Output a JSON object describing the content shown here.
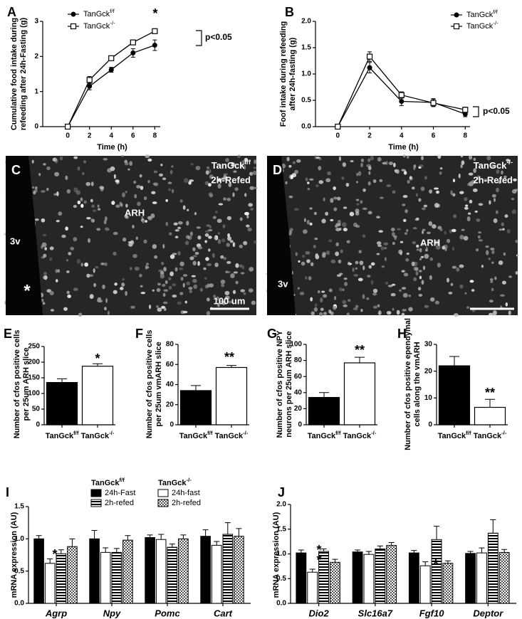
{
  "chart_data": [
    {
      "type": "line",
      "label": "A",
      "ylabel": [
        "Cumulative food intake during",
        "refeeding after 24h-Fasting (g)"
      ],
      "xlabel": "Time (h)",
      "x": [
        0,
        2,
        4,
        6,
        8
      ],
      "xlim": [
        -2.3,
        8.5
      ],
      "xticks": [
        0,
        2,
        4,
        6,
        8
      ],
      "ylim": [
        0,
        3
      ],
      "yticks": [
        0,
        1,
        2,
        3
      ],
      "series": [
        {
          "name": "TanGck",
          "sup": "f/f",
          "color": "#000000",
          "marker": "circle",
          "values": [
            0,
            1.15,
            1.62,
            2.1,
            2.32
          ],
          "errors": [
            0,
            0.1,
            0.07,
            0.12,
            0.15
          ]
        },
        {
          "name": "TanGck",
          "sup": "-/-",
          "color": "#000000",
          "marker": "square",
          "values": [
            0,
            1.33,
            1.95,
            2.4,
            2.72
          ],
          "errors": [
            0,
            0.1,
            0.06,
            0.05,
            0.05
          ]
        }
      ],
      "annotations": [
        "*",
        "p<0.05"
      ]
    },
    {
      "type": "line",
      "label": "B",
      "ylabel": [
        "Foof intake during refeeding",
        "after 24h-fasting (g)"
      ],
      "xlabel": "Time (h)",
      "x": [
        0,
        2,
        4,
        6,
        8
      ],
      "xlim": [
        -1.4,
        8.3
      ],
      "xticks": [
        0,
        2,
        4,
        6,
        8
      ],
      "ylim": [
        0,
        2
      ],
      "yticks": [
        {
          "value": 0,
          "label": "0.0"
        },
        {
          "value": 0.5,
          "label": "0.5"
        },
        {
          "value": 1,
          "label": "1.0"
        },
        {
          "value": 1.5,
          "label": "1.5"
        },
        {
          "value": 2,
          "label": "2.0"
        }
      ],
      "series": [
        {
          "name": "TanGck",
          "sup": "f/f",
          "color": "#000000",
          "marker": "circle",
          "values": [
            0,
            1.12,
            0.48,
            0.46,
            0.24
          ],
          "errors": [
            0,
            0.1,
            0.08,
            0.07,
            0.05
          ]
        },
        {
          "name": "TanGck",
          "sup": "-/-",
          "color": "#000000",
          "marker": "square",
          "values": [
            0,
            1.33,
            0.6,
            0.45,
            0.32
          ],
          "errors": [
            0,
            0.09,
            0.06,
            0.07,
            0.05
          ]
        }
      ],
      "annotations": [
        "p<0.05"
      ]
    },
    {
      "type": "bar",
      "label": "E",
      "ylabel": [
        "Number of cfos positive cells",
        "per 25um ARH slice"
      ],
      "categories": [
        "TanGck",
        "TanGck"
      ],
      "category_sups": [
        "f/f",
        "-/-"
      ],
      "values": [
        135,
        187
      ],
      "errors": [
        12,
        8
      ],
      "colors": [
        "#000000",
        "#ffffff"
      ],
      "ylim": [
        0,
        250
      ],
      "yticks": [
        0,
        50,
        100,
        150,
        200,
        250
      ],
      "annotations": [
        "*"
      ]
    },
    {
      "type": "bar",
      "label": "F",
      "ylabel": [
        "Number of cfos positive cells",
        "per 25um vmARH slice"
      ],
      "categories": [
        "TanGck",
        "TanGck"
      ],
      "category_sups": [
        "f/f",
        "-/-"
      ],
      "values": [
        34,
        57
      ],
      "errors": [
        5,
        2
      ],
      "colors": [
        "#000000",
        "#ffffff"
      ],
      "ylim": [
        0,
        80
      ],
      "yticks": [
        0,
        20,
        40,
        60,
        80
      ],
      "annotations": [
        "**"
      ]
    },
    {
      "type": "bar",
      "label": "G",
      "ylabel": [
        "Number of cfos positive NPY",
        "neurons per 25um ARH slice"
      ],
      "categories": [
        "TanGck",
        "TanGck"
      ],
      "category_sups": [
        "f/f",
        "-/-"
      ],
      "values": [
        34,
        77
      ],
      "errors": [
        6,
        7
      ],
      "colors": [
        "#000000",
        "#ffffff"
      ],
      "ylim": [
        0,
        100
      ],
      "yticks": [
        0,
        20,
        40,
        60,
        80,
        100
      ],
      "annotations": [
        "**"
      ]
    },
    {
      "type": "bar",
      "label": "H",
      "ylabel": [
        "Number of cfos positive ependymal",
        "cells along the vmARH"
      ],
      "categories": [
        "TanGck",
        "TanGck"
      ],
      "category_sups": [
        "f/f",
        "-/-"
      ],
      "values": [
        22,
        6.5
      ],
      "errors": [
        3.5,
        3
      ],
      "colors": [
        "#000000",
        "#ffffff"
      ],
      "ylim": [
        0,
        30
      ],
      "yticks": [
        0,
        10,
        20,
        30
      ],
      "annotations": [
        "**"
      ]
    },
    {
      "type": "grouped-bar",
      "label": "I",
      "ylabel": [
        "mRNA expression (AU)"
      ],
      "categories": [
        "Agrp",
        "Npy",
        "Pomc",
        "Cart"
      ],
      "legend_groups": [
        {
          "name": "TanGck",
          "sup": "f/f"
        },
        {
          "name": "TanGck",
          "sup": "-/-"
        }
      ],
      "ylim": [
        0,
        1.5
      ],
      "yticks": [
        {
          "value": 0,
          "label": "0.0"
        },
        {
          "value": 0.5,
          "label": "0.5"
        },
        {
          "value": 1,
          "label": "1.0"
        },
        {
          "value": 1.5,
          "label": "1.5"
        }
      ],
      "series": [
        {
          "name": "24h-Fast",
          "color": "#000000",
          "values": [
            1.0,
            1.0,
            1.02,
            1.04
          ],
          "errors": [
            0.05,
            0.13,
            0.04,
            0.1
          ]
        },
        {
          "name": "24h-fast",
          "color": "#ffffff",
          "values": [
            0.62,
            0.79,
            0.99,
            0.9
          ],
          "errors": [
            0.07,
            0.07,
            0.08,
            0.06
          ]
        },
        {
          "name": "2h-refed",
          "color": "#000000",
          "pattern": "stripes",
          "values": [
            0.77,
            0.79,
            0.87,
            1.07
          ],
          "errors": [
            0.06,
            0.06,
            0.05,
            0.18
          ]
        },
        {
          "name": "2h-refed",
          "color": "#555555",
          "pattern": "checker",
          "values": [
            0.88,
            0.98,
            1.0,
            1.04
          ],
          "errors": [
            0.12,
            0.07,
            0.06,
            0.12
          ]
        }
      ],
      "annotations": [
        "*"
      ]
    },
    {
      "type": "grouped-bar",
      "label": "J",
      "ylabel": [
        "mRNA expression (AU)"
      ],
      "categories": [
        "Dio2",
        "Slc16a7",
        "Fgf10",
        "Deptor"
      ],
      "ylim": [
        0,
        2
      ],
      "yticks": [
        {
          "value": 0,
          "label": "0.0"
        },
        {
          "value": 0.5,
          "label": "0.5"
        },
        {
          "value": 1,
          "label": "1.0"
        },
        {
          "value": 1.5,
          "label": "1.5"
        },
        {
          "value": 2,
          "label": "2.0"
        }
      ],
      "series": [
        {
          "color": "#000000",
          "values": [
            1.02,
            1.04,
            1.02,
            1.01
          ],
          "errors": [
            0.06,
            0.04,
            0.05,
            0.04
          ]
        },
        {
          "color": "#ffffff",
          "values": [
            0.63,
            0.99,
            0.76,
            1.02
          ],
          "errors": [
            0.06,
            0.06,
            0.08,
            0.1
          ]
        },
        {
          "color": "#000000",
          "pattern": "stripes",
          "values": [
            1.05,
            1.1,
            1.29,
            1.42
          ],
          "errors": [
            0.05,
            0.06,
            0.27,
            0.27
          ]
        },
        {
          "color": "#555555",
          "pattern": "checker",
          "values": [
            0.83,
            1.17,
            0.81,
            1.03
          ],
          "errors": [
            0.06,
            0.06,
            0.05,
            0.06
          ]
        }
      ],
      "annotations": [
        "*",
        "*",
        "*"
      ]
    }
  ],
  "micrographs": [
    {
      "label": "C",
      "caption": "TanGck",
      "caption_sup": "f/f",
      "caption2": "2h-Refed",
      "region": "ARH",
      "ventricle": "3v",
      "mark": "*",
      "scale": "100 um"
    },
    {
      "label": "D",
      "caption": "TanGck",
      "caption_sup": "-/-",
      "caption2": "2h-Refed",
      "region": "ARH",
      "ventricle": "3v"
    }
  ]
}
